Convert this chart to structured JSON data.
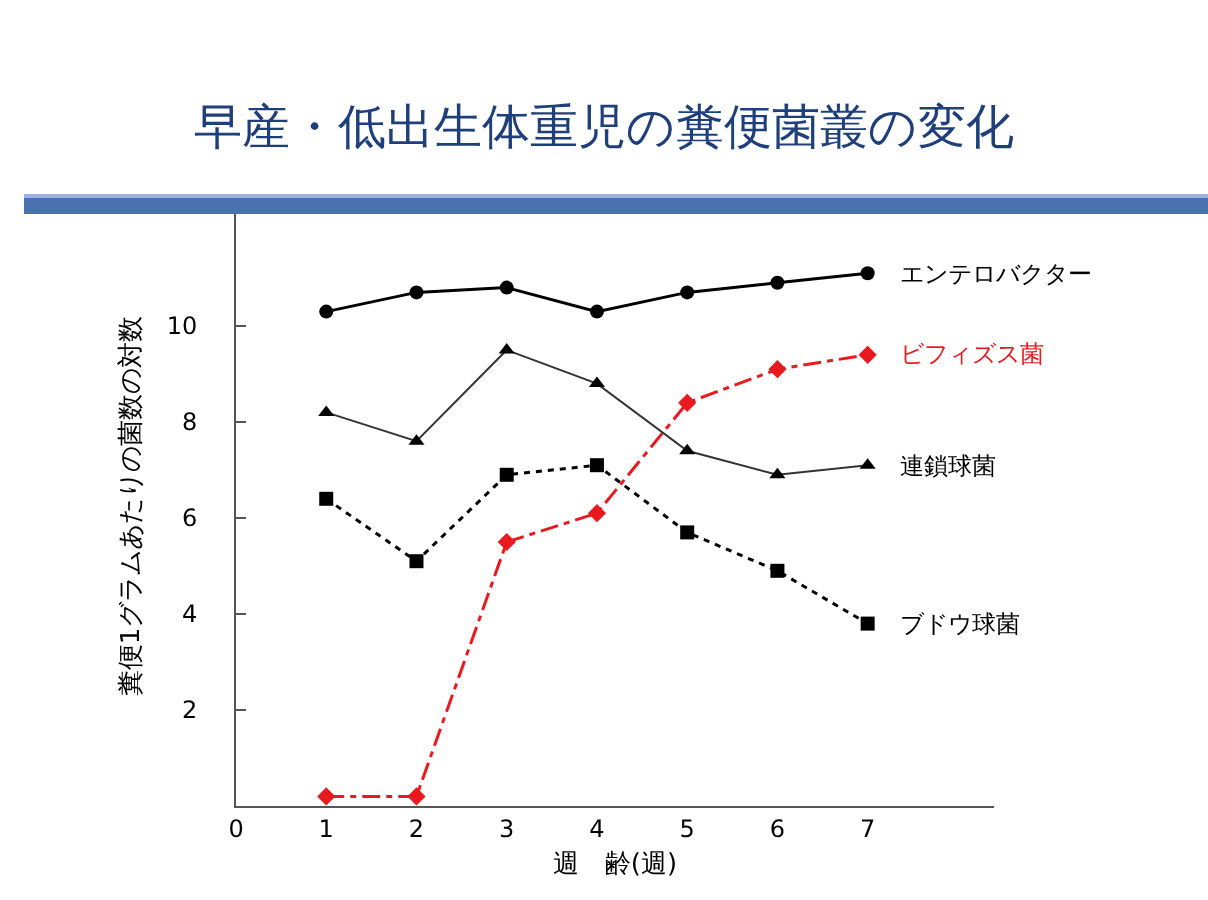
{
  "chart_data": {
    "type": "line",
    "title": "早産・低出生体重児の糞便菌叢の変化",
    "xlabel": "週　齢(週)",
    "ylabel": "糞便1グラムあたりの菌数の対数",
    "x": [
      1,
      2,
      3,
      4,
      5,
      6,
      7
    ],
    "series": [
      {
        "name": "エンテロバクター",
        "color": "#000000",
        "marker": "circle",
        "line_style": "solid",
        "values": [
          10.3,
          10.7,
          10.8,
          10.3,
          10.7,
          10.9,
          11.1
        ]
      },
      {
        "name": "ビフィズス菌",
        "color": "#e8191f",
        "marker": "diamond",
        "line_style": "dashed",
        "values": [
          0.2,
          0.2,
          5.5,
          6.1,
          8.4,
          9.1,
          9.4
        ]
      },
      {
        "name": "連鎖球菌",
        "color": "#333333",
        "marker": "triangle",
        "line_style": "solid",
        "values": [
          8.2,
          7.6,
          9.5,
          8.8,
          7.4,
          6.9,
          7.1
        ]
      },
      {
        "name": "ブドウ球菌",
        "color": "#000000",
        "marker": "square",
        "line_style": "dotted",
        "values": [
          6.4,
          5.1,
          6.9,
          7.1,
          5.7,
          4.9,
          3.8
        ]
      }
    ],
    "xlim": [
      0,
      8.4
    ],
    "xticks": [
      0,
      1,
      2,
      3,
      4,
      5,
      6,
      7
    ],
    "ylim": [
      0,
      12.5
    ],
    "yticks": [
      2,
      4,
      6,
      8,
      10
    ],
    "grid": false,
    "legend": false
  }
}
